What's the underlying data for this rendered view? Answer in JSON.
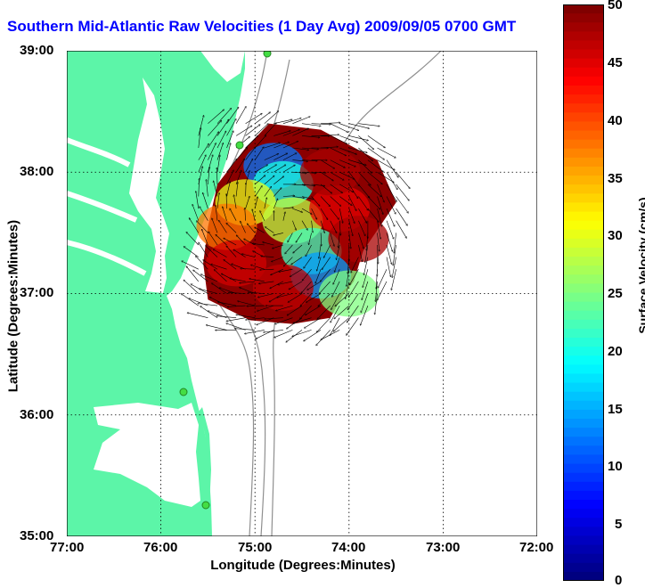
{
  "chart_data": {
    "type": "heatmap",
    "title": "Southern Mid-Atlantic Raw Velocities (1 Day Avg) 2009/09/05 0700 GMT",
    "xlabel": "Longitude (Degrees:Minutes)",
    "ylabel": "Latitude (Degrees:Minutes)",
    "colorbar_label": "Surface Velocity (cm/s)",
    "x_ticks": [
      "77:00",
      "76:00",
      "75:00",
      "74:00",
      "73:00",
      "72:00"
    ],
    "y_ticks": [
      "39:00",
      "38:00",
      "37:00",
      "36:00",
      "35:00"
    ],
    "colorbar_ticks": [
      "50",
      "45",
      "40",
      "35",
      "30",
      "25",
      "20",
      "15",
      "10",
      "5",
      "0"
    ],
    "xlim": [
      -77,
      -72
    ],
    "ylim": [
      35,
      39
    ],
    "clim": [
      0,
      50
    ],
    "grid": true,
    "colormap": "jet",
    "land_color": "#5cf5a8",
    "title_color": "#0000ff",
    "field_cells": [
      {
        "lon": -74.8,
        "lat": 38.05,
        "speed": 12
      },
      {
        "lon": -74.7,
        "lat": 37.9,
        "speed": 20
      },
      {
        "lon": -75.1,
        "lat": 37.75,
        "speed": 30
      },
      {
        "lon": -75.3,
        "lat": 37.55,
        "speed": 38
      },
      {
        "lon": -74.6,
        "lat": 37.6,
        "speed": 28
      },
      {
        "lon": -74.4,
        "lat": 37.35,
        "speed": 22
      },
      {
        "lon": -74.3,
        "lat": 37.15,
        "speed": 14
      },
      {
        "lon": -74.0,
        "lat": 37.0,
        "speed": 25
      },
      {
        "lon": -74.1,
        "lat": 37.7,
        "speed": 45
      },
      {
        "lon": -73.9,
        "lat": 37.45,
        "speed": 48
      },
      {
        "lon": -75.2,
        "lat": 37.25,
        "speed": 46
      },
      {
        "lon": -74.7,
        "lat": 37.05,
        "speed": 47
      },
      {
        "lon": -74.2,
        "lat": 38.0,
        "speed": 48
      }
    ]
  }
}
